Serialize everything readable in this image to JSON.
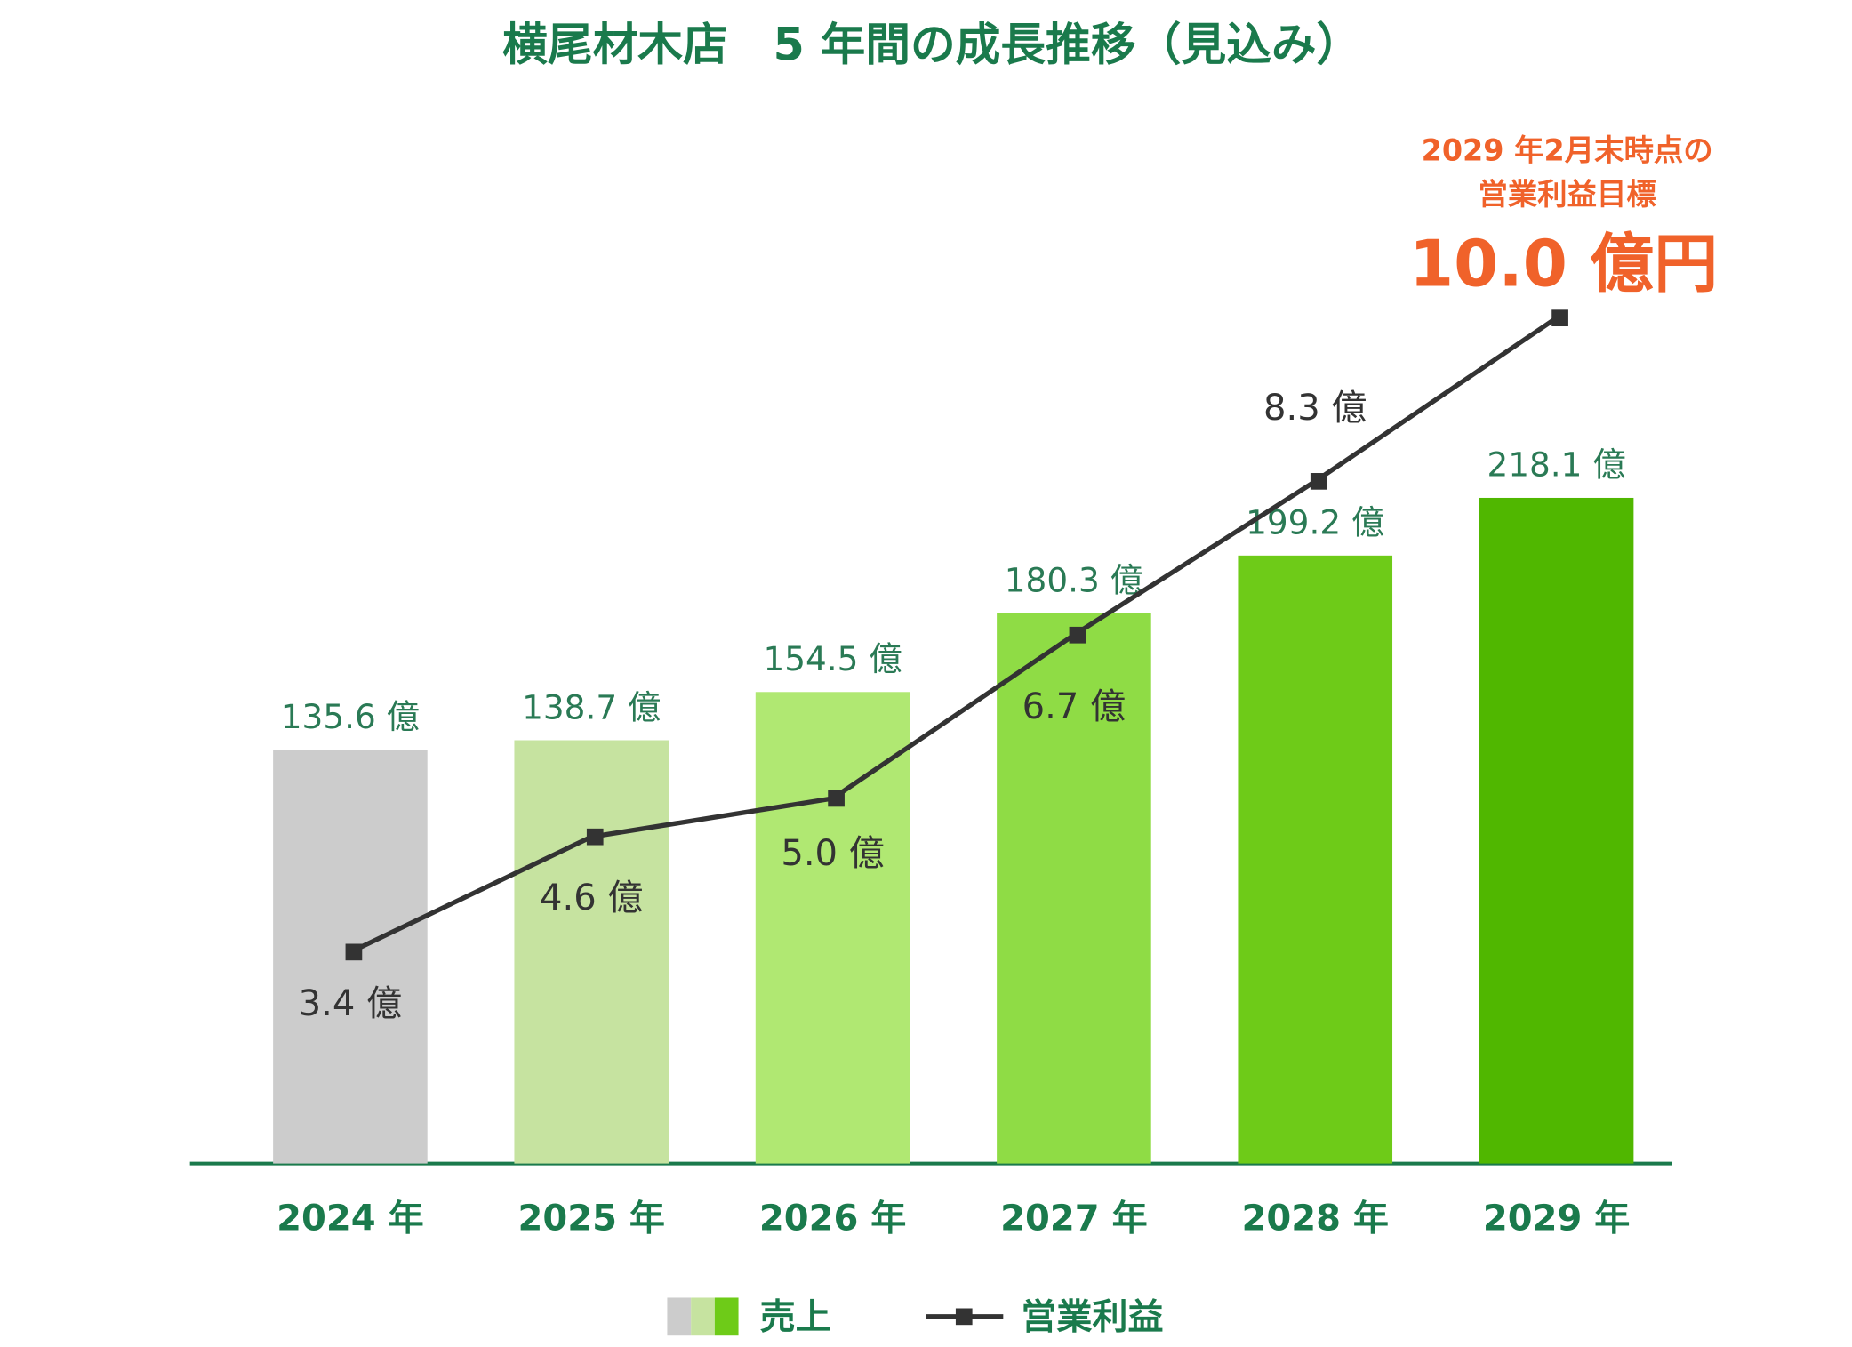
{
  "chart_data": {
    "type": "bar",
    "title": "横尾材木店　5 年間の成長推移（見込み）",
    "categories": [
      "2024 年",
      "2025 年",
      "2026 年",
      "2027 年",
      "2028 年",
      "2029 年"
    ],
    "series": [
      {
        "name": "売上",
        "type": "bar",
        "colors": [
          "#cccccc",
          "#c6e3a0",
          "#b0e872",
          "#8fdc45",
          "#6ecb18",
          "#50b700"
        ],
        "values": [
          135.6,
          138.7,
          154.5,
          180.3,
          199.2,
          218.1
        ],
        "value_labels": [
          "135.6 億",
          "138.7 億",
          "154.5 億",
          "180.3 億",
          "199.2 億",
          "218.1 億"
        ]
      },
      {
        "name": "営業利益",
        "type": "line",
        "axis": "y2",
        "color": "#333333",
        "values": [
          3.4,
          4.6,
          5.0,
          6.7,
          8.3,
          10.0
        ],
        "value_labels": [
          "3.4 億",
          "4.6 億",
          "5.0 億",
          "6.7 億",
          "8.3 億",
          "10.0 億円"
        ]
      }
    ],
    "annotation": [
      "2029 年2月末時点の",
      "営業利益目標"
    ],
    "ylim": [
      0,
      340
    ],
    "y2lim": [
      1.2,
      12
    ],
    "legend": "bottom"
  }
}
